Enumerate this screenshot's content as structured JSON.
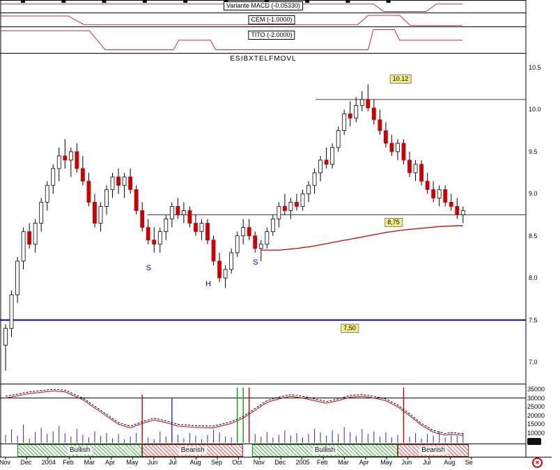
{
  "indicators": {
    "macd": {
      "label": "Variante MACD (-0.05330)",
      "points": [
        [
          0,
          32
        ],
        [
          71,
          32
        ],
        [
          73,
          92
        ],
        [
          81,
          92
        ],
        [
          83,
          32
        ],
        [
          88,
          32
        ]
      ]
    },
    "cem": {
      "label": "CEM (-1.0000)",
      "points": [
        [
          0,
          25
        ],
        [
          13,
          25
        ],
        [
          16,
          88
        ],
        [
          68,
          88
        ],
        [
          70,
          20
        ],
        [
          76,
          20
        ],
        [
          78,
          93
        ],
        [
          88,
          93
        ]
      ]
    },
    "tito": {
      "label": "TITO (-2.0000)",
      "points": [
        [
          0,
          16
        ],
        [
          17,
          16
        ],
        [
          20,
          88
        ],
        [
          33,
          88
        ],
        [
          34,
          52
        ],
        [
          40,
          52
        ],
        [
          41,
          88
        ],
        [
          70,
          88
        ],
        [
          71,
          12
        ],
        [
          75,
          12
        ],
        [
          76,
          52
        ],
        [
          88,
          52
        ]
      ]
    }
  },
  "chart_data": {
    "type": "candlestick",
    "title": "ESIBXTELFMOVL",
    "price_axis": {
      "min": 7.0,
      "max": 10.5,
      "ticks": [
        {
          "label": "10.5",
          "value": 10.5
        },
        {
          "label": "10.0",
          "value": 10.0
        },
        {
          "label": "9.5",
          "value": 9.5
        },
        {
          "label": "9.0",
          "value": 9.0
        },
        {
          "label": "8.5",
          "value": 8.5
        },
        {
          "label": "8.0",
          "value": 8.0
        },
        {
          "label": "7.5",
          "value": 7.5
        },
        {
          "label": "7.0",
          "value": 7.0
        }
      ]
    },
    "volume_axis": {
      "refline": 30000,
      "ticks": [
        {
          "label": "35000",
          "value": 35000
        },
        {
          "label": "30000",
          "value": 30000
        },
        {
          "label": "25000",
          "value": 25000
        },
        {
          "label": "20000",
          "value": 20000
        },
        {
          "label": "15000",
          "value": 15000
        },
        {
          "label": "10000",
          "value": 10000
        }
      ]
    },
    "x_axis_labels": [
      "Nov",
      "Dec",
      "2004",
      "Feb",
      "Mar",
      "Apr",
      "May",
      "Jun",
      "Jul",
      "Aug",
      "Sep",
      "Oct",
      "Nov",
      "Dec",
      "2005",
      "Feb",
      "Mar",
      "Apr",
      "May",
      "Jun",
      "Jul",
      "Aug",
      "Se"
    ],
    "candles": [
      [
        7.2,
        7.45,
        6.9,
        7.4
      ],
      [
        7.4,
        7.85,
        7.3,
        7.8
      ],
      [
        7.8,
        8.25,
        7.7,
        8.2
      ],
      [
        8.2,
        8.6,
        8.1,
        8.55
      ],
      [
        8.55,
        8.65,
        8.35,
        8.4
      ],
      [
        8.4,
        8.7,
        8.3,
        8.65
      ],
      [
        8.65,
        8.95,
        8.55,
        8.9
      ],
      [
        8.9,
        9.15,
        8.8,
        9.1
      ],
      [
        9.1,
        9.35,
        9.0,
        9.3
      ],
      [
        9.3,
        9.55,
        9.15,
        9.45
      ],
      [
        9.45,
        9.65,
        9.3,
        9.4
      ],
      [
        9.4,
        9.55,
        9.2,
        9.5
      ],
      [
        9.5,
        9.6,
        9.25,
        9.3
      ],
      [
        9.3,
        9.45,
        9.1,
        9.15
      ],
      [
        9.15,
        9.25,
        8.85,
        8.9
      ],
      [
        8.9,
        9.0,
        8.6,
        8.65
      ],
      [
        8.65,
        8.9,
        8.55,
        8.85
      ],
      [
        8.85,
        9.1,
        8.75,
        9.05
      ],
      [
        9.05,
        9.25,
        8.95,
        9.2
      ],
      [
        9.2,
        9.3,
        9.0,
        9.1
      ],
      [
        9.1,
        9.25,
        8.95,
        9.2
      ],
      [
        9.2,
        9.3,
        9.0,
        9.05
      ],
      [
        9.05,
        9.1,
        8.75,
        8.8
      ],
      [
        8.8,
        8.9,
        8.55,
        8.6
      ],
      [
        8.6,
        8.7,
        8.4,
        8.45
      ],
      [
        8.45,
        8.6,
        8.3,
        8.4
      ],
      [
        8.4,
        8.6,
        8.3,
        8.55
      ],
      [
        8.55,
        8.75,
        8.45,
        8.7
      ],
      [
        8.7,
        8.9,
        8.6,
        8.85
      ],
      [
        8.85,
        8.95,
        8.7,
        8.75
      ],
      [
        8.75,
        8.9,
        8.65,
        8.8
      ],
      [
        8.8,
        8.85,
        8.6,
        8.65
      ],
      [
        8.65,
        8.75,
        8.5,
        8.55
      ],
      [
        8.55,
        8.7,
        8.45,
        8.65
      ],
      [
        8.65,
        8.7,
        8.4,
        8.45
      ],
      [
        8.45,
        8.5,
        8.15,
        8.2
      ],
      [
        8.2,
        8.3,
        7.95,
        8.0
      ],
      [
        8.0,
        8.15,
        7.88,
        8.1
      ],
      [
        8.1,
        8.35,
        8.05,
        8.3
      ],
      [
        8.3,
        8.55,
        8.25,
        8.5
      ],
      [
        8.5,
        8.7,
        8.4,
        8.6
      ],
      [
        8.6,
        8.7,
        8.45,
        8.5
      ],
      [
        8.5,
        8.55,
        8.3,
        8.35
      ],
      [
        8.35,
        8.45,
        8.2,
        8.4
      ],
      [
        8.4,
        8.6,
        8.35,
        8.55
      ],
      [
        8.55,
        8.75,
        8.5,
        8.7
      ],
      [
        8.7,
        8.9,
        8.6,
        8.85
      ],
      [
        8.85,
        9.0,
        8.75,
        8.8
      ],
      [
        8.8,
        8.95,
        8.7,
        8.9
      ],
      [
        8.9,
        9.0,
        8.8,
        8.85
      ],
      [
        8.85,
        9.05,
        8.8,
        9.0
      ],
      [
        9.0,
        9.15,
        8.9,
        9.1
      ],
      [
        9.1,
        9.3,
        9.0,
        9.25
      ],
      [
        9.25,
        9.45,
        9.15,
        9.4
      ],
      [
        9.4,
        9.55,
        9.3,
        9.35
      ],
      [
        9.35,
        9.6,
        9.3,
        9.55
      ],
      [
        9.55,
        9.8,
        9.5,
        9.75
      ],
      [
        9.75,
        10.0,
        9.7,
        9.95
      ],
      [
        9.95,
        10.1,
        9.8,
        9.9
      ],
      [
        9.9,
        10.15,
        9.85,
        10.05
      ],
      [
        10.05,
        10.22,
        9.98,
        10.12
      ],
      [
        10.12,
        10.3,
        9.98,
        10.02
      ],
      [
        10.02,
        10.12,
        9.82,
        9.88
      ],
      [
        9.88,
        10.0,
        9.7,
        9.75
      ],
      [
        9.75,
        9.85,
        9.55,
        9.6
      ],
      [
        9.6,
        9.7,
        9.45,
        9.5
      ],
      [
        9.5,
        9.65,
        9.4,
        9.6
      ],
      [
        9.6,
        9.65,
        9.35,
        9.4
      ],
      [
        9.4,
        9.5,
        9.2,
        9.25
      ],
      [
        9.25,
        9.4,
        9.15,
        9.35
      ],
      [
        9.35,
        9.4,
        9.1,
        9.15
      ],
      [
        9.15,
        9.25,
        9.0,
        9.05
      ],
      [
        9.05,
        9.15,
        8.9,
        8.95
      ],
      [
        8.95,
        9.1,
        8.85,
        9.05
      ],
      [
        9.05,
        9.1,
        8.85,
        8.9
      ],
      [
        8.9,
        9.0,
        8.8,
        8.85
      ],
      [
        8.85,
        8.95,
        8.7,
        8.75
      ],
      [
        8.75,
        8.85,
        8.65,
        8.8
      ]
    ],
    "ma": [
      [
        43,
        8.33
      ],
      [
        46,
        8.33
      ],
      [
        49,
        8.35
      ],
      [
        52,
        8.38
      ],
      [
        55,
        8.42
      ],
      [
        58,
        8.46
      ],
      [
        61,
        8.5
      ],
      [
        64,
        8.54
      ],
      [
        67,
        8.57
      ],
      [
        70,
        8.59
      ],
      [
        73,
        8.61
      ],
      [
        76,
        8.62
      ],
      [
        77,
        8.62
      ]
    ],
    "volume": [
      9000,
      12000,
      8500,
      15000,
      7000,
      10500,
      13000,
      9500,
      11000,
      14000,
      10000,
      8000,
      12500,
      9000,
      7500,
      11000,
      8500,
      10000,
      7000,
      9500,
      6500,
      8000,
      10000,
      9000,
      7500,
      6500,
      11000,
      8000,
      9500,
      9000,
      7000,
      10000,
      8500,
      6500,
      9000,
      12000,
      10500,
      8000,
      7500,
      9500,
      8500,
      9000,
      9500,
      8000,
      10500,
      7500,
      9000,
      11500,
      8500,
      10000,
      7500,
      9500,
      12500,
      10500,
      8500,
      11500,
      9500,
      13500,
      10500,
      8500,
      12500,
      9500,
      11000,
      8000,
      10500,
      7500,
      9000,
      8500,
      8000,
      10000,
      7000,
      9500,
      8500,
      11000,
      7500,
      9000,
      8500,
      10000
    ],
    "volume_markers": [
      {
        "index": 23,
        "value": 32000,
        "color": "#cc0000"
      },
      {
        "index": 28,
        "value": 30000,
        "color": "#2b2bb0"
      },
      {
        "index": 39,
        "value": 36000,
        "color": "#00aa00"
      },
      {
        "index": 40,
        "value": 36000,
        "color": "#00aa00"
      },
      {
        "index": 41,
        "value": 36000,
        "color": "#cc0000"
      },
      {
        "index": 67,
        "value": 36000,
        "color": "#cc0000"
      }
    ],
    "volume_ma": [
      [
        0,
        30000
      ],
      [
        4,
        32500
      ],
      [
        8,
        34000
      ],
      [
        10,
        33500
      ],
      [
        13,
        29000
      ],
      [
        16,
        22000
      ],
      [
        19,
        15000
      ],
      [
        21,
        13000
      ],
      [
        23,
        15500
      ],
      [
        25,
        17500
      ],
      [
        27,
        16000
      ],
      [
        29,
        14000
      ],
      [
        32,
        13200
      ],
      [
        35,
        13000
      ],
      [
        38,
        15500
      ],
      [
        40,
        18500
      ],
      [
        42,
        23000
      ],
      [
        44,
        27500
      ],
      [
        46,
        29500
      ],
      [
        48,
        31000
      ],
      [
        50,
        30000
      ],
      [
        52,
        28500
      ],
      [
        54,
        27000
      ],
      [
        56,
        28500
      ],
      [
        58,
        30500
      ],
      [
        60,
        31000
      ],
      [
        62,
        30000
      ],
      [
        64,
        28500
      ],
      [
        66,
        25000
      ],
      [
        68,
        20000
      ],
      [
        70,
        14500
      ],
      [
        72,
        10500
      ],
      [
        74,
        8800
      ],
      [
        75,
        9300
      ],
      [
        76,
        9000
      ],
      [
        77,
        8700
      ]
    ],
    "levels": {
      "resistance": {
        "label": "10.12",
        "value": 10.12,
        "from_frac": 0.6
      },
      "support": {
        "label": "8,75",
        "value": 8.75,
        "from_frac": 0.28
      },
      "major": {
        "label": "7,50",
        "value": 7.5,
        "from_frac": 0
      }
    },
    "letters": [
      {
        "text": "S",
        "candle": 24,
        "price": 8.12
      },
      {
        "text": "H",
        "candle": 34,
        "price": 7.93
      },
      {
        "text": "S",
        "candle": 42,
        "price": 8.18
      }
    ]
  },
  "sentiment_bands": [
    {
      "label": "Bullish",
      "kind": "bullish",
      "from_candle": 2,
      "to_candle": 23
    },
    {
      "label": "Bearish",
      "kind": "bearish",
      "from_candle": 23,
      "to_candle": 40
    },
    {
      "label": "Bullish",
      "kind": "bullish",
      "from_candle": 41.5,
      "to_candle": 66
    },
    {
      "label": "Bearish",
      "kind": "bearish",
      "from_candle": 66,
      "to_candle": 78
    }
  ],
  "icons": {
    "close": "✕"
  },
  "colors": {
    "up_candle": "#ffffff",
    "down_candle": "#cc0000",
    "volume_bar": "#2b2bb0",
    "indicator_line": "#c03030",
    "ma_line": "#cc0000",
    "level_line": "#3b3b6b",
    "major_line": "#0000cc",
    "label_bg": "#f5f07b",
    "bullish_hatch": "#1e8c1e",
    "bearish_hatch": "#c82828"
  }
}
